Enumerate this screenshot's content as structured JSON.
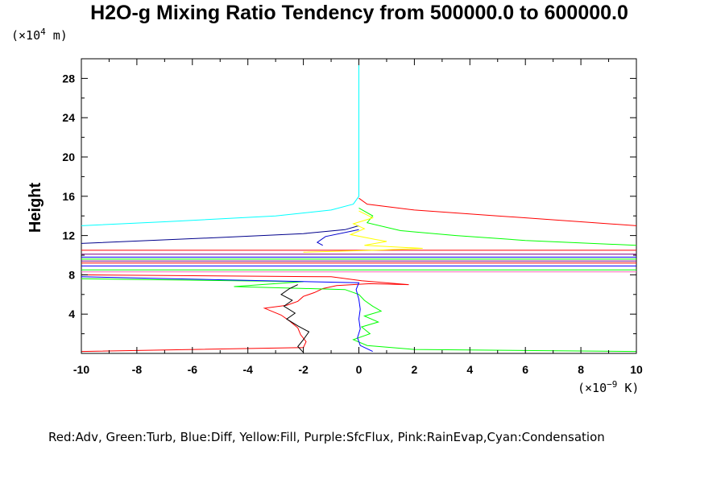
{
  "chart_data": {
    "type": "line",
    "title": "H2O-g Mixing Ratio Tendency from 500000.0 to 600000.0",
    "ylabel": "Height",
    "y_unit": {
      "base": "(×10",
      "exp": "4",
      "tail": " m)"
    },
    "x_unit": {
      "base": "(×10",
      "exp": "−9",
      "tail": " K)"
    },
    "xlim": [
      -10,
      10
    ],
    "ylim": [
      0,
      30
    ],
    "x_ticks": [
      -10,
      -8,
      -6,
      -4,
      -2,
      0,
      2,
      4,
      6,
      8,
      10
    ],
    "x_tick_labels": [
      "-10",
      "-8",
      "-6",
      "-4",
      "-2",
      "0",
      "2",
      "4",
      "6",
      "8",
      "10"
    ],
    "y_ticks": [
      4,
      8,
      12,
      16,
      20,
      24,
      28
    ],
    "y_tick_labels": [
      "4",
      "8",
      "12",
      "16",
      "20",
      "24",
      "28"
    ],
    "legend_text": "Red:Adv,  Green:Turb,  Blue:Diff,  Yellow:Fill,  Purple:SfcFlux,  Pink:RainEvap,Cyan:Condensation",
    "grid": false,
    "series": [
      {
        "color": "#ff0000",
        "points": [
          [
            -10,
            0.2
          ],
          [
            -2,
            0.6
          ],
          [
            -1.9,
            1.2
          ],
          [
            -2.1,
            1.9
          ],
          [
            -2.2,
            2.6
          ],
          [
            -2.5,
            3.3
          ],
          [
            -2.8,
            3.9
          ],
          [
            -3.4,
            4.6
          ],
          [
            -2.6,
            4.9
          ],
          [
            -2.2,
            5.3
          ],
          [
            -2.0,
            5.8
          ],
          [
            -1.6,
            6.2
          ],
          [
            -1.3,
            6.6
          ],
          [
            -0.8,
            6.9
          ],
          [
            0.4,
            7.1
          ],
          [
            1.8,
            7.0
          ],
          [
            0.1,
            7.4
          ],
          [
            -1.0,
            7.8
          ],
          [
            -10,
            8.0
          ]
        ]
      },
      {
        "color": "#ff0000",
        "points": [
          [
            -10,
            9.2
          ],
          [
            10,
            9.2
          ]
        ]
      },
      {
        "color": "#ff0000",
        "points": [
          [
            -10,
            10.5
          ],
          [
            10,
            10.5
          ]
        ]
      },
      {
        "color": "#ff0000",
        "points": [
          [
            0,
            15.8
          ],
          [
            0.3,
            15.2
          ],
          [
            2,
            14.6
          ],
          [
            5,
            14.0
          ],
          [
            8,
            13.4
          ],
          [
            10,
            13.0
          ]
        ]
      },
      {
        "color": "#00ff00",
        "points": [
          [
            10,
            0.2
          ],
          [
            2,
            0.4
          ],
          [
            0.3,
            0.8
          ],
          [
            -0.2,
            1.4
          ],
          [
            0.4,
            2.0
          ],
          [
            0.1,
            2.7
          ],
          [
            0.7,
            3.2
          ],
          [
            0.2,
            3.8
          ],
          [
            0.8,
            4.3
          ],
          [
            0.5,
            4.8
          ],
          [
            0.2,
            5.4
          ],
          [
            0,
            6.0
          ],
          [
            -0.5,
            6.5
          ],
          [
            -4.5,
            6.8
          ],
          [
            -2,
            7.3
          ],
          [
            -10,
            7.6
          ]
        ]
      },
      {
        "color": "#00ff00",
        "points": [
          [
            -10,
            8.5
          ],
          [
            10,
            8.5
          ]
        ]
      },
      {
        "color": "#00ff00",
        "points": [
          [
            -10,
            9.6
          ],
          [
            10,
            9.6
          ]
        ]
      },
      {
        "color": "#00ff00",
        "points": [
          [
            0,
            14.8
          ],
          [
            0.5,
            14.0
          ],
          [
            0.3,
            13.3
          ],
          [
            1.5,
            12.5
          ],
          [
            3.5,
            12.0
          ],
          [
            6,
            11.5
          ],
          [
            10,
            11.0
          ]
        ]
      },
      {
        "color": "#0000ff",
        "points": [
          [
            0.5,
            0.2
          ],
          [
            0.05,
            0.8
          ],
          [
            -0.05,
            1.6
          ],
          [
            0.05,
            2.5
          ],
          [
            0,
            3.5
          ],
          [
            0.05,
            4.5
          ],
          [
            0,
            5.5
          ],
          [
            -0.1,
            6.5
          ],
          [
            0,
            7.2
          ],
          [
            -10,
            7.8
          ]
        ]
      },
      {
        "color": "#0000ff",
        "points": [
          [
            -10,
            9.8
          ],
          [
            10,
            9.8
          ]
        ]
      },
      {
        "color": "#0000ff",
        "points": [
          [
            -10,
            8.9
          ],
          [
            10,
            8.9
          ]
        ]
      },
      {
        "color": "#00008b",
        "points": [
          [
            -10,
            11.2
          ],
          [
            -5,
            11.8
          ],
          [
            -2,
            12.2
          ],
          [
            -0.5,
            12.6
          ],
          [
            0,
            13.0
          ]
        ]
      },
      {
        "color": "#0000cd",
        "points": [
          [
            0,
            12.6
          ],
          [
            -1.2,
            11.9
          ],
          [
            -1.5,
            11.3
          ],
          [
            -1.3,
            11.0
          ]
        ]
      },
      {
        "color": "#000000",
        "points": [
          [
            -2,
            0.1
          ],
          [
            -2.2,
            0.7
          ],
          [
            -2.0,
            1.4
          ],
          [
            -1.8,
            2.2
          ],
          [
            -2.2,
            2.8
          ],
          [
            -2.6,
            3.5
          ],
          [
            -2.3,
            4.1
          ],
          [
            -2.7,
            4.8
          ],
          [
            -2.4,
            5.4
          ],
          [
            -2.8,
            6.0
          ],
          [
            -2.5,
            6.6
          ],
          [
            -2.2,
            7.0
          ]
        ]
      },
      {
        "color": "#ffff00",
        "points": [
          [
            0,
            14.5
          ],
          [
            0.5,
            13.8
          ],
          [
            -0.2,
            13.2
          ],
          [
            0.2,
            12.7
          ],
          [
            -0.3,
            12.1
          ],
          [
            0.6,
            11.6
          ],
          [
            1.0,
            11.4
          ],
          [
            0.2,
            11.0
          ],
          [
            2.3,
            10.7
          ],
          [
            0.6,
            10.5
          ],
          [
            -2.0,
            10.3
          ]
        ]
      },
      {
        "color": "#800080",
        "points": [
          [
            -10,
            10.1
          ],
          [
            10,
            10.1
          ]
        ]
      },
      {
        "color": "#800080",
        "points": [
          [
            -10,
            9.4
          ],
          [
            10,
            9.4
          ]
        ]
      },
      {
        "color": "#ff69b4",
        "points": [
          [
            -10,
            8.3
          ],
          [
            10,
            8.3
          ]
        ]
      },
      {
        "color": "#00ffff",
        "points": [
          [
            0,
            30
          ],
          [
            0,
            16
          ],
          [
            -0.2,
            15.2
          ],
          [
            -1,
            14.6
          ],
          [
            -3,
            14.0
          ],
          [
            -7,
            13.4
          ],
          [
            -10,
            13.0
          ]
        ]
      }
    ]
  }
}
